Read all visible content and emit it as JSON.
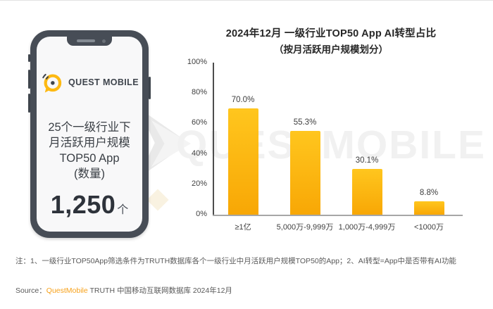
{
  "phone": {
    "logo_text": "QUEST MOBILE",
    "caption_lines": [
      "25个一级行业下",
      "月活跃用户规模",
      "TOP50 App",
      "(数量)"
    ],
    "metric_value": "1,250",
    "metric_unit": "个"
  },
  "chart_data": {
    "type": "bar",
    "title": "2024年12月 一级行业TOP50 App AI转型占比",
    "subtitle": "（按月活跃用户规模划分）",
    "categories": [
      "≥1亿",
      "5,000万-9,999万",
      "1,000万-4,999万",
      "<1000万"
    ],
    "values": [
      70.0,
      55.3,
      30.1,
      8.8
    ],
    "value_labels": [
      "70.0%",
      "55.3%",
      "30.1%",
      "8.8%"
    ],
    "y_ticks": [
      "100%",
      "80%",
      "60%",
      "40%",
      "20%",
      "0%"
    ],
    "ylim": [
      0,
      100
    ],
    "grid": "off",
    "legend": "none",
    "bar_color_top": "#FFC61E",
    "bar_color_bottom": "#F8A705"
  },
  "watermark": {
    "text": "QUESTMOBILE"
  },
  "footer": {
    "note_text": "注：1、一级行业TOP50App筛选条件为TRUTH数据库各个一级行业中月活跃用户规模TOP50的App；2、AI转型=App中是否带有AI功能",
    "source_label": "Source：",
    "source_brand": "QuestMobile",
    "source_rest": " TRUTH 中国移动互联网数据库 2024年12月"
  },
  "colors": {
    "brand_yellow": "#FDB913",
    "brand_orange": "#F7A11A",
    "phone_frame": "#474D56",
    "text_dark": "#262626",
    "text_note": "#595959"
  }
}
